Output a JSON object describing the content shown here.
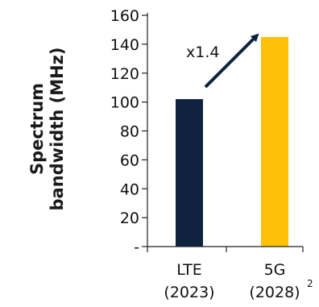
{
  "chart_data": {
    "type": "bar",
    "categories": [
      {
        "line1": "LTE",
        "line2": "(2023)"
      },
      {
        "line1": "5G",
        "line2": "(2028)"
      }
    ],
    "values": [
      102,
      145
    ],
    "colors": [
      "#0f2341",
      "#ffc107"
    ],
    "ylabel_lines": [
      "Spectrum",
      "bandwidth (MHz)"
    ],
    "ylim": [
      0,
      160
    ],
    "yticks": [
      {
        "value": 0,
        "label": "-"
      },
      {
        "value": 20,
        "label": "20"
      },
      {
        "value": 40,
        "label": "40"
      },
      {
        "value": 60,
        "label": "60"
      },
      {
        "value": 80,
        "label": "80"
      },
      {
        "value": 100,
        "label": "100"
      },
      {
        "value": 120,
        "label": "120"
      },
      {
        "value": 140,
        "label": "140"
      },
      {
        "value": 160,
        "label": "160"
      }
    ],
    "annotation": {
      "text": "x1.4"
    },
    "footnote": "2",
    "arrow_color": "#0f2341",
    "grid": false,
    "legend": "none"
  }
}
